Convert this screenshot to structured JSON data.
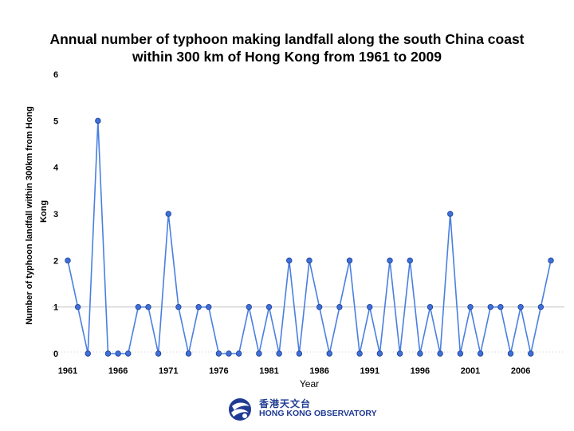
{
  "chart_data": {
    "type": "line",
    "title_line1": "Annual number of typhoon making landfall along the south China coast",
    "title_line2": "within 300 km of Hong Kong from 1961 to 2009",
    "ylabel_line1": "Number of typhoon landfall within 300km from Hong",
    "ylabel_line2": "Kong",
    "xlabel": "Year",
    "x": [
      1961,
      1962,
      1963,
      1964,
      1965,
      1966,
      1967,
      1968,
      1969,
      1970,
      1971,
      1972,
      1973,
      1974,
      1975,
      1976,
      1977,
      1978,
      1979,
      1980,
      1981,
      1982,
      1983,
      1984,
      1985,
      1986,
      1987,
      1988,
      1989,
      1990,
      1991,
      1992,
      1993,
      1994,
      1995,
      1996,
      1997,
      1998,
      1999,
      2000,
      2001,
      2002,
      2003,
      2004,
      2005,
      2006,
      2007,
      2008,
      2009
    ],
    "values": [
      2,
      1,
      0,
      5,
      0,
      0,
      0,
      1,
      1,
      0,
      3,
      1,
      0,
      1,
      1,
      0,
      0,
      0,
      1,
      0,
      1,
      0,
      2,
      0,
      2,
      1,
      0,
      1,
      2,
      0,
      1,
      0,
      2,
      0,
      2,
      0,
      1,
      0,
      3,
      0,
      1,
      0,
      1,
      1,
      0,
      1,
      0,
      1,
      2
    ],
    "xticks": [
      1961,
      1966,
      1971,
      1976,
      1981,
      1986,
      1991,
      1996,
      2001,
      2006
    ],
    "xtick_labels": [
      "1961",
      "1966",
      "1971",
      "1976",
      "1981",
      "1986",
      "1991",
      "1996",
      "2001",
      "2006"
    ],
    "yticks": [
      0,
      1,
      2,
      3,
      4,
      5,
      6
    ],
    "ytick_labels": [
      "0",
      "1",
      "2",
      "3",
      "4",
      "5",
      "6"
    ],
    "ylim": [
      0,
      6
    ],
    "xlim": [
      1961,
      2009
    ],
    "grid": "horizontal line at y=1",
    "legend": "none",
    "colors": {
      "line": "#4a7fe0",
      "marker_fill": "#3f6fd6",
      "marker_edge": "#1a3f99",
      "grid": "#bfbfbf"
    }
  },
  "logo": {
    "chinese": "香港天文台",
    "english": "HONG KONG OBSERVATORY",
    "color": "#1f3a93"
  }
}
